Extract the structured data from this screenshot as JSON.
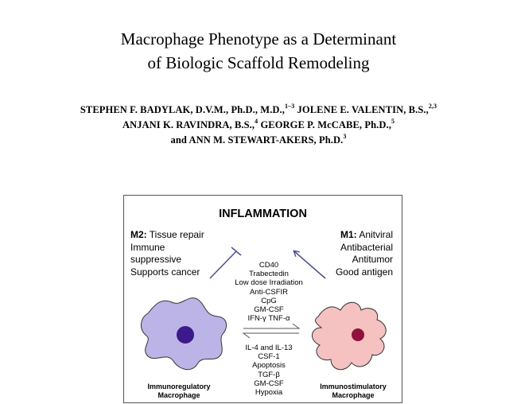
{
  "title": {
    "line1": "Macrophage Phenotype as a Determinant",
    "line2": "of Biologic Scaffold Remodeling"
  },
  "authors": {
    "line1_a": "STEPHEN F. BADYLAK, D.V.M., Ph.D., M.D.,",
    "line1_a_sup": "1–3",
    "line1_b": " JOLENE E. VALENTIN, B.S.,",
    "line1_b_sup": "2,3",
    "line2_a": "ANJANI K. RAVINDRA, B.S.,",
    "line2_a_sup": "4",
    "line2_b": " GEORGE P. McCABE, Ph.D.,",
    "line2_b_sup": "5",
    "line3_a": "and ANN M. STEWART-AKERS, Ph.D.",
    "line3_a_sup": "3"
  },
  "figure": {
    "heading": "INFLAMMATION",
    "m2": {
      "label": "M2:",
      "line1": " Tissue repair",
      "line2": "Immune",
      "line3": "suppressive",
      "line4": "Supports cancer"
    },
    "m1": {
      "label": "M1:",
      "line1": " Anitviral",
      "line2": "Antibacterial",
      "line3": "Antitumor",
      "line4": "Good antigen"
    },
    "to_m1_factors": [
      "CD40",
      "Trabectedin",
      "Low dose Irradiation",
      "Anti-CSFIR",
      "CpG",
      "GM-CSF",
      "IFN-γ TNF-α"
    ],
    "to_m2_factors": [
      "IL-4 and IL-13",
      "CSF-1",
      "Apoptosis",
      "TGF-β",
      "GM-CSF",
      "Hypoxia"
    ],
    "left_cell": {
      "line1": "Immunoregulatory",
      "line2": "Macrophage",
      "body_color": "#bcb3e6",
      "nucleus_color": "#3c1a8c"
    },
    "right_cell": {
      "line1": "Immunostimulatory",
      "line2": "Macrophage",
      "body_color": "#f5c1c1",
      "nucleus_color": "#8e1239"
    },
    "arrow_color": "#4a4f8c"
  }
}
